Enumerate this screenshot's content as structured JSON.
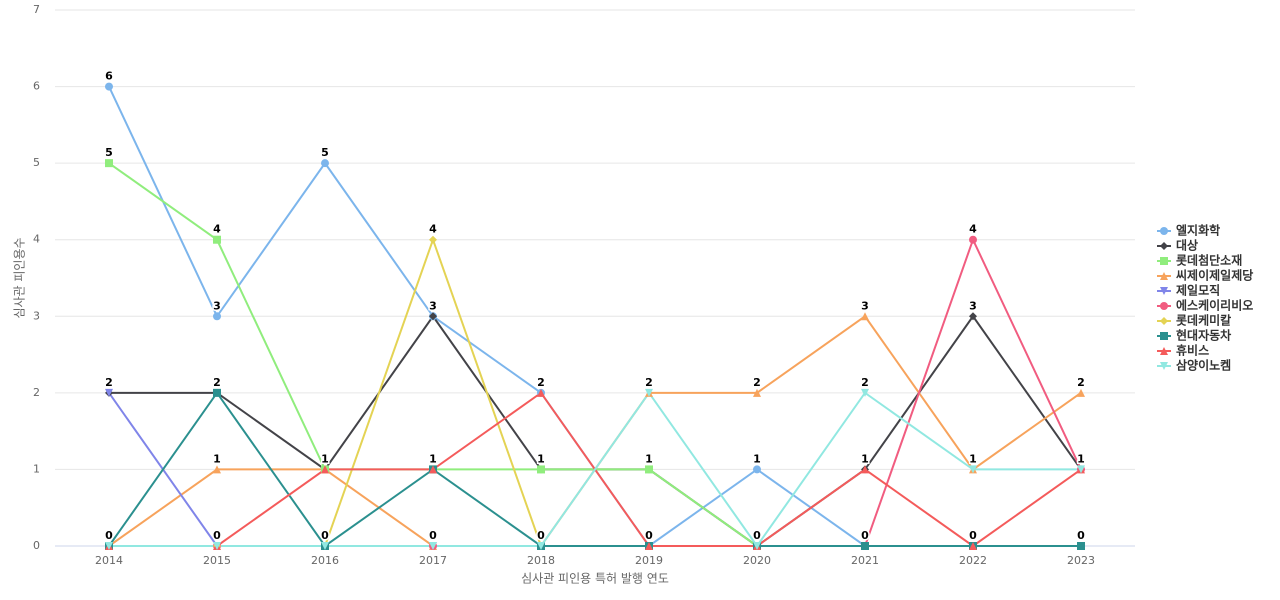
{
  "chart_data": {
    "type": "line",
    "x_label": "심사관 피인용 특허 발행 연도",
    "y_label": "심사관 피인용수",
    "categories": [
      "2014",
      "2015",
      "2016",
      "2017",
      "2018",
      "2019",
      "2020",
      "2021",
      "2022",
      "2023"
    ],
    "ylim": [
      0,
      7
    ],
    "yticks": [
      0,
      1,
      2,
      3,
      4,
      5,
      6,
      7
    ],
    "grid": true,
    "legend": "right",
    "series": [
      {
        "name": "엘지화학",
        "color": "#7cb5ec",
        "values": [
          6,
          3,
          5,
          3,
          2,
          0,
          1,
          0,
          0,
          0
        ]
      },
      {
        "name": "대상",
        "color": "#434348",
        "values": [
          2,
          2,
          1,
          3,
          1,
          1,
          0,
          1,
          3,
          1
        ]
      },
      {
        "name": "롯데첨단소재",
        "color": "#90ed7d",
        "values": [
          5,
          4,
          1,
          1,
          1,
          1,
          0,
          0,
          0,
          0
        ]
      },
      {
        "name": "씨제이제일제당",
        "color": "#f7a35c",
        "values": [
          0,
          1,
          1,
          0,
          0,
          2,
          2,
          3,
          1,
          2
        ]
      },
      {
        "name": "제일모직",
        "color": "#8085e9",
        "values": [
          2,
          0,
          0,
          0,
          0,
          0,
          0,
          0,
          0,
          0
        ]
      },
      {
        "name": "에스케이리비오",
        "color": "#f15c80",
        "values": [
          0,
          0,
          0,
          0,
          0,
          0,
          0,
          0,
          4,
          1
        ]
      },
      {
        "name": "롯데케미칼",
        "color": "#e4d354",
        "values": [
          0,
          0,
          0,
          4,
          0,
          0,
          0,
          0,
          0,
          0
        ]
      },
      {
        "name": "현대자동차",
        "color": "#2b908f",
        "values": [
          0,
          2,
          0,
          1,
          0,
          0,
          0,
          0,
          0,
          0
        ]
      },
      {
        "name": "휴비스",
        "color": "#f45b5b",
        "values": [
          0,
          0,
          1,
          1,
          2,
          0,
          0,
          1,
          0,
          1
        ]
      },
      {
        "name": "삼양이노켐",
        "color": "#91e8e1",
        "values": [
          0,
          0,
          0,
          0,
          0,
          2,
          0,
          2,
          1,
          1
        ]
      }
    ]
  }
}
